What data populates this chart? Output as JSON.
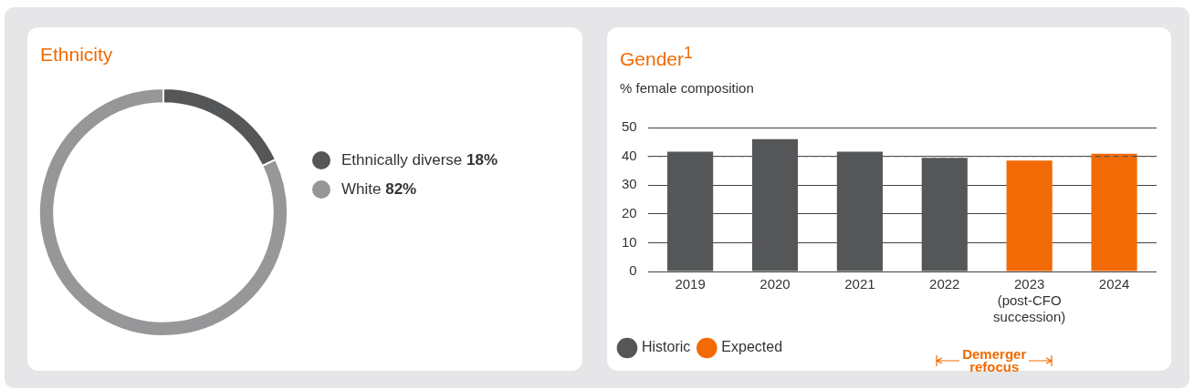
{
  "chart_data": [
    {
      "type": "donut",
      "title": "Ethnicity",
      "categories": [
        "Ethnically diverse",
        "White"
      ],
      "values": [
        18,
        82
      ],
      "colors": [
        "#555658",
        "#97979a"
      ],
      "value_labels": [
        "18%",
        "82%"
      ],
      "legend": "right"
    },
    {
      "type": "bar",
      "title": "Gender$^{1}$",
      "ylabel": "% female composition",
      "categories": [
        "2019",
        "2020",
        "2021",
        "2022",
        "2023 (post-CFO succession)",
        "2024"
      ],
      "series": [
        {
          "name": "Historic",
          "color": "#555658",
          "values": [
            41.6,
            46.0,
            41.6,
            39.5,
            null,
            null
          ]
        },
        {
          "name": "Expected",
          "color": "#f26a05",
          "values": [
            null,
            null,
            null,
            null,
            38.5,
            40.9
          ]
        }
      ],
      "ylim": [
        0,
        50
      ],
      "yticks": [
        0,
        10,
        20,
        30,
        40,
        50
      ],
      "grid": "y",
      "legend": "bottom left",
      "ref_lines": [
        {
          "axis": "y",
          "value": 40,
          "line_style": "dashed",
          "color": "#555658"
        }
      ],
      "annotations": [
        "Demerger refocus"
      ]
    }
  ]
}
